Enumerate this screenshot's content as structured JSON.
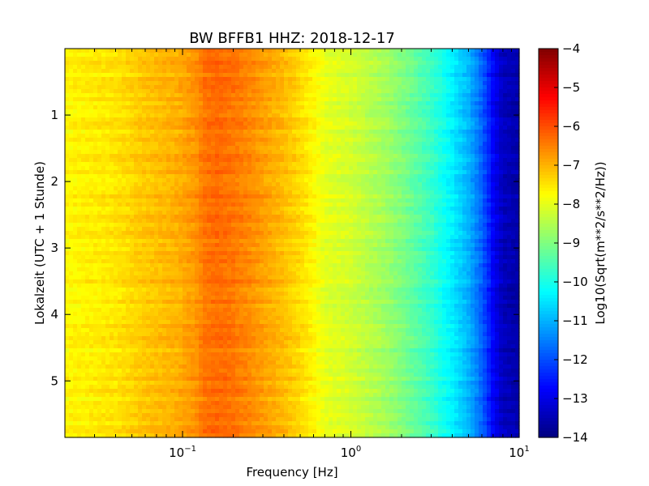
{
  "chart_data": {
    "type": "heatmap",
    "title": "BW BFFB1 HHZ: 2018-12-17",
    "xlabel": "Frequency [Hz]",
    "ylabel": "Lokalzeit (UTC + 1 Stunde)",
    "x_scale": "log",
    "xlim": [
      0.02,
      10
    ],
    "ylim": [
      5.85,
      0
    ],
    "x_ticks": [
      {
        "value": 0.1,
        "base": "10",
        "exp": "−1"
      },
      {
        "value": 1,
        "base": "10",
        "exp": "0"
      },
      {
        "value": 10,
        "base": "10",
        "exp": "1"
      }
    ],
    "y_ticks": [
      {
        "value": 1,
        "label": "1"
      },
      {
        "value": 2,
        "label": "2"
      },
      {
        "value": 3,
        "label": "3"
      },
      {
        "value": 4,
        "label": "4"
      },
      {
        "value": 5,
        "label": "5"
      }
    ],
    "colorbar": {
      "label": "Log10(Sqrt(m**2/s**2/Hz))",
      "colormap": "jet",
      "range": [
        -14,
        -4
      ],
      "ticks": [
        {
          "value": -4,
          "label": "−4"
        },
        {
          "value": -5,
          "label": "−5"
        },
        {
          "value": -6,
          "label": "−6"
        },
        {
          "value": -7,
          "label": "−7"
        },
        {
          "value": -8,
          "label": "−8"
        },
        {
          "value": -9,
          "label": "−9"
        },
        {
          "value": -10,
          "label": "−10"
        },
        {
          "value": -11,
          "label": "−11"
        },
        {
          "value": -12,
          "label": "−12"
        },
        {
          "value": -13,
          "label": "−13"
        },
        {
          "value": -14,
          "label": "−14"
        }
      ]
    },
    "spectrum_profile": {
      "frequency_hz": [
        0.02,
        0.04,
        0.06,
        0.09,
        0.12,
        0.135,
        0.16,
        0.2,
        0.25,
        0.3,
        0.4,
        0.5,
        0.6,
        0.7,
        1.0,
        1.5,
        2.0,
        3.0,
        4.0,
        5.0,
        6.0,
        7.0,
        8.0,
        10.0
      ],
      "psd_log10": [
        -7.7,
        -7.5,
        -7.2,
        -7.0,
        -6.7,
        -6.4,
        -6.3,
        -6.4,
        -6.6,
        -6.8,
        -7.1,
        -7.4,
        -7.7,
        -8.0,
        -8.2,
        -8.6,
        -9.0,
        -9.7,
        -10.4,
        -11.0,
        -11.8,
        -12.8,
        -13.4,
        -13.6
      ]
    }
  }
}
